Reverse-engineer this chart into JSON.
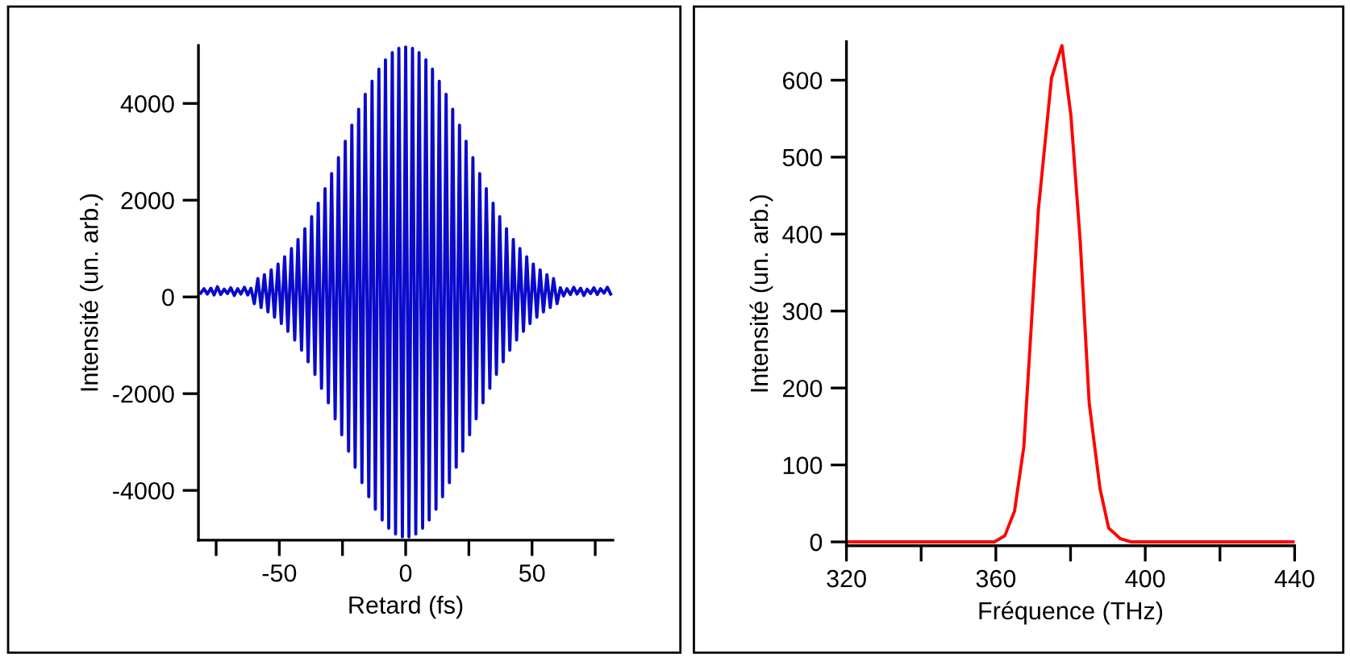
{
  "chart_data": [
    {
      "type": "line",
      "xlabel": "Retard (fs)",
      "ylabel": "Intensité (un. arb.)",
      "xlim": [
        -82,
        82
      ],
      "ylim": [
        -5030,
        5200
      ],
      "xticks": [
        {
          "value": -75,
          "label": null
        },
        -50,
        {
          "value": -25,
          "label": null
        },
        0,
        {
          "value": 25,
          "label": null
        },
        50,
        {
          "value": 75,
          "label": null
        }
      ],
      "yticks": [
        -4000,
        -2000,
        0,
        2000,
        4000
      ],
      "grid": false,
      "legend": false,
      "series": [
        {
          "color": "#0a0acc",
          "x": [
            -81.1,
            -79.8,
            -78.5,
            -77.1,
            -75.8,
            -74.5,
            -73.2,
            -71.8,
            -70.5,
            -69.2,
            -67.8,
            -66.5,
            -65.2,
            -63.8,
            -62.5,
            -61.2,
            -59.9,
            -58.5,
            -57.2,
            -55.9,
            -54.5,
            -53.2,
            -51.9,
            -50.5,
            -49.2,
            -47.9,
            -46.6,
            -45.2,
            -43.9,
            -42.6,
            -41.2,
            -39.9,
            -38.6,
            -37.2,
            -35.9,
            -34.6,
            -33.3,
            -31.9,
            -30.6,
            -29.3,
            -27.9,
            -26.6,
            -25.3,
            -23.9,
            -22.6,
            -21.3,
            -20.0,
            -18.6,
            -17.3,
            -16.0,
            -14.6,
            -13.3,
            -12.0,
            -10.6,
            -9.3,
            -8.0,
            -6.7,
            -5.3,
            -4.0,
            -2.7,
            -1.3,
            0,
            1.3,
            2.7,
            4.0,
            5.3,
            6.7,
            8.0,
            9.3,
            10.6,
            12.0,
            13.3,
            14.6,
            16.0,
            17.3,
            18.6,
            20.0,
            21.3,
            22.6,
            23.9,
            25.3,
            26.6,
            27.9,
            29.3,
            30.6,
            31.9,
            33.3,
            34.6,
            35.9,
            37.2,
            38.6,
            39.9,
            41.2,
            42.6,
            43.9,
            45.2,
            46.6,
            47.9,
            49.2,
            50.5,
            51.9,
            53.2,
            54.5,
            55.9,
            57.2,
            58.5,
            59.9,
            61.2,
            62.5,
            63.8,
            65.2,
            66.5,
            67.8,
            69.2,
            70.5,
            71.8,
            73.2,
            74.5,
            75.8,
            77.1,
            78.5,
            79.8,
            81.1
          ],
          "values": [
            80,
            170,
            60,
            180,
            40,
            210,
            50,
            160,
            70,
            190,
            30,
            170,
            60,
            200,
            40,
            180,
            -140,
            380,
            -220,
            460,
            -310,
            560,
            -420,
            680,
            -550,
            830,
            -710,
            1000,
            -890,
            1190,
            -1100,
            1410,
            -1340,
            1660,
            -1600,
            1940,
            -1890,
            2240,
            -2190,
            2550,
            -2520,
            2880,
            -2850,
            3220,
            -3190,
            3550,
            -3520,
            3880,
            -3840,
            4190,
            -4130,
            4460,
            -4390,
            4710,
            -4610,
            4900,
            -4780,
            5050,
            -4900,
            5140,
            -4960,
            5170,
            -4960,
            5140,
            -4900,
            5050,
            -4780,
            4900,
            -4610,
            4710,
            -4390,
            4460,
            -4130,
            4190,
            -3840,
            3880,
            -3520,
            3550,
            -3190,
            3220,
            -2850,
            2880,
            -2520,
            2550,
            -2190,
            2240,
            -1890,
            1940,
            -1600,
            1660,
            -1340,
            1410,
            -1100,
            1190,
            -890,
            1000,
            -710,
            830,
            -550,
            680,
            -420,
            560,
            -310,
            460,
            -220,
            380,
            -140,
            190,
            20,
            170,
            50,
            200,
            60,
            180,
            30,
            160,
            70,
            190,
            50,
            170,
            80,
            200,
            60
          ]
        }
      ]
    },
    {
      "type": "line",
      "xlabel": "Fréquence (THz)",
      "ylabel": "Intensité (un. arb.)",
      "xlim": [
        320,
        440
      ],
      "ylim": [
        -5,
        650
      ],
      "xticks": [
        320,
        {
          "value": 340,
          "label": null
        },
        360,
        {
          "value": 380,
          "label": null
        },
        400,
        {
          "value": 420,
          "label": null
        },
        440
      ],
      "yticks": [
        0,
        100,
        200,
        300,
        400,
        500,
        600
      ],
      "grid": false,
      "legend": false,
      "series": [
        {
          "color": "#ff0000",
          "x": [
            320,
            359.6,
            362.4,
            365.0,
            367.5,
            371.4,
            374.9,
            377.7,
            380.1,
            382.6,
            385.0,
            387.9,
            390.2,
            393.4,
            396.3,
            440
          ],
          "values": [
            0,
            0,
            8,
            40,
            124,
            432,
            603,
            645,
            554,
            390,
            180,
            69,
            18,
            4,
            0,
            0
          ]
        }
      ]
    }
  ]
}
